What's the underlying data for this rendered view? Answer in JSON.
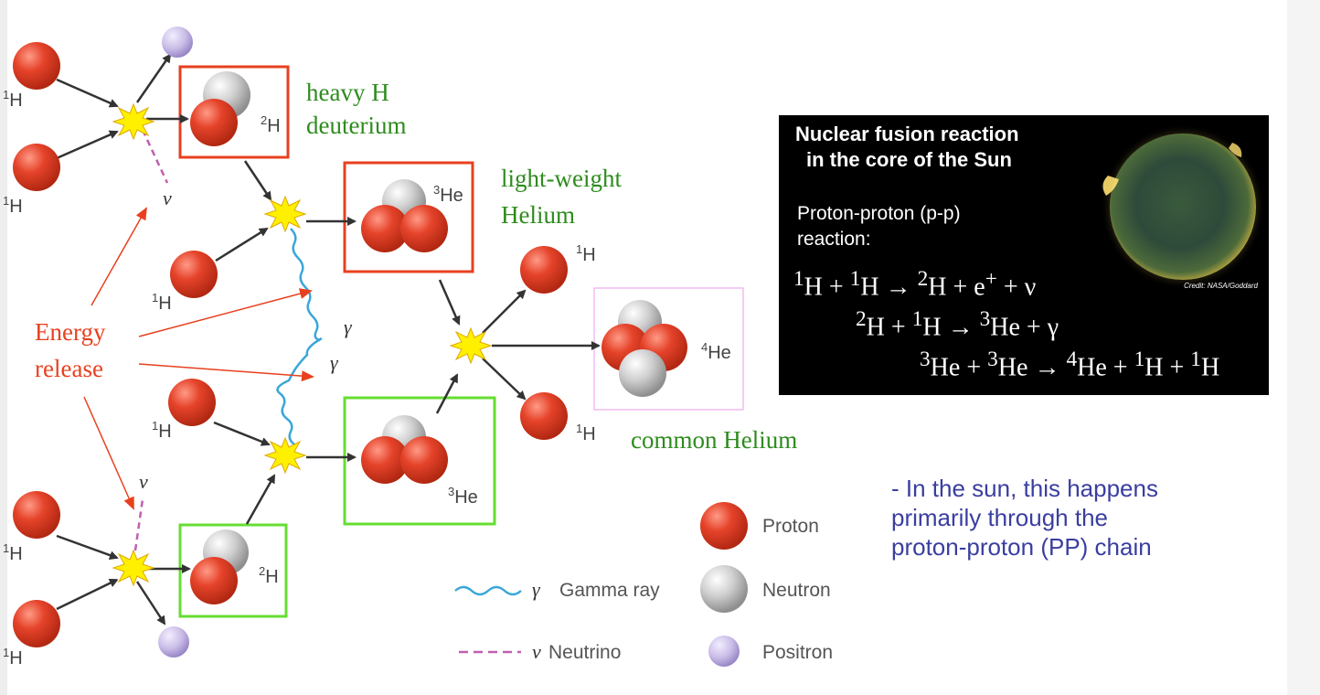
{
  "diagram": {
    "nuclei": {
      "h1": "H",
      "h1_mass": "1",
      "h2": "H",
      "h2_mass": "2",
      "he3": "He",
      "he3_mass": "3",
      "he4": "He",
      "he4_mass": "4"
    },
    "symbols": {
      "gamma": "γ",
      "nu": "ν"
    },
    "annotations": {
      "heavy_h_line1": "heavy H",
      "heavy_h_line2": "deuterium",
      "light_he_line1": "light-weight",
      "light_he_line2": "Helium",
      "common_he": "common Helium",
      "energy_line1": "Energy",
      "energy_line2": "release"
    },
    "legend": {
      "gamma_label": "Gamma ray",
      "neutrino_label": "Neutrino",
      "proton": "Proton",
      "neutron": "Neutron",
      "positron": "Positron"
    },
    "colors": {
      "proton": "#e5432a",
      "neutron": "#c9c9c9",
      "positron": "#c9bce6",
      "box_red": "#e8401f",
      "box_green": "#66dd33",
      "box_pink": "#ee99ee",
      "gamma": "#3aa7d8",
      "neutrino": "#c060b0"
    }
  },
  "panel": {
    "title_line1": "Nuclear fusion reaction",
    "title_line2": "in the core of the Sun",
    "subtitle_line1": "Proton-proton (p-p)",
    "subtitle_line2": "reaction:",
    "credit": "Credit: NASA/Goddard",
    "eq1": {
      "a": "H + ",
      "b": "H → ",
      "c": "H + e",
      "d": " + ν",
      "ma": "1",
      "mb": "1",
      "mc": "2",
      "plus": "+"
    },
    "eq2": {
      "a": "H + ",
      "b": "H → ",
      "c": "He + γ",
      "ma": "2",
      "mb": "1",
      "mc": "3"
    },
    "eq3": {
      "a": "He + ",
      "b": "He → ",
      "c": "He + ",
      "d": "H + ",
      "e": "H",
      "ma": "3",
      "mb": "3",
      "mc": "4",
      "md": "1",
      "me": "1"
    }
  },
  "bullet": {
    "line1": "- In the sun, this happens",
    "line2": "primarily through the",
    "line3": "proton-proton (PP) chain"
  }
}
